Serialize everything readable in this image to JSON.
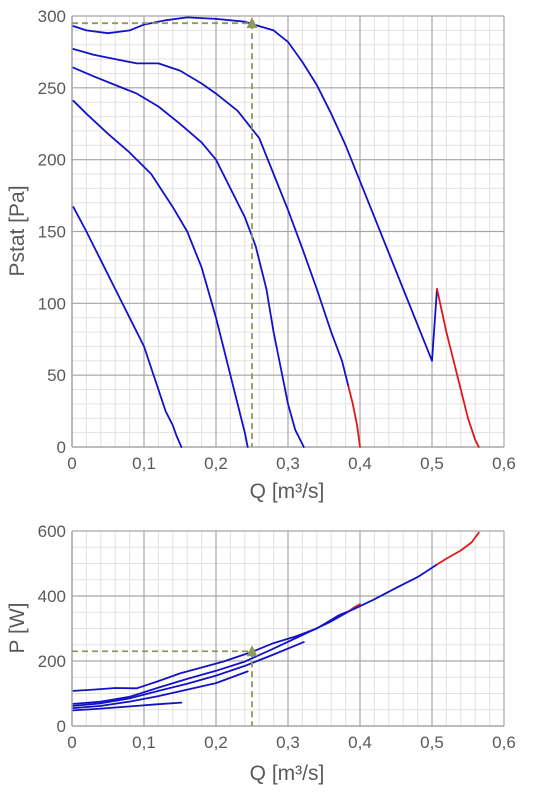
{
  "chart_data": [
    {
      "type": "line",
      "xlabel": "Q [m³/s]",
      "ylabel": "Pstat [Pa]",
      "xlim": [
        0,
        0.6
      ],
      "ylim": [
        0,
        300
      ],
      "xticks": [
        "0",
        "0,1",
        "0,2",
        "0,3",
        "0,4",
        "0,5",
        "0,6"
      ],
      "yticks": [
        "0",
        "50",
        "100",
        "150",
        "200",
        "250",
        "300"
      ],
      "grid": true,
      "colors": {
        "curve": "#1212c8",
        "limit": "#e01818",
        "operating": "#8c9a5a",
        "major_grid": "#a6a6a6",
        "minor_grid": "#e2e2e2"
      },
      "series": [
        {
          "segments": [
            {
              "color": "curve",
              "points": [
                [
                  0.002,
                  167
                ],
                [
                  0.02,
                  150
                ],
                [
                  0.04,
                  130
                ],
                [
                  0.06,
                  110
                ],
                [
                  0.08,
                  90
                ],
                [
                  0.1,
                  70
                ],
                [
                  0.11,
                  55
                ],
                [
                  0.12,
                  40
                ],
                [
                  0.13,
                  25
                ],
                [
                  0.14,
                  15
                ],
                [
                  0.145,
                  8
                ],
                [
                  0.152,
                  0
                ]
              ]
            }
          ]
        },
        {
          "segments": [
            {
              "color": "curve",
              "points": [
                [
                  0.002,
                  241
                ],
                [
                  0.02,
                  232
                ],
                [
                  0.05,
                  218
                ],
                [
                  0.08,
                  205
                ],
                [
                  0.11,
                  190
                ],
                [
                  0.14,
                  167
                ],
                [
                  0.16,
                  150
                ],
                [
                  0.18,
                  125
                ],
                [
                  0.2,
                  90
                ],
                [
                  0.21,
                  70
                ],
                [
                  0.22,
                  50
                ],
                [
                  0.23,
                  30
                ],
                [
                  0.24,
                  10
                ],
                [
                  0.244,
                  0
                ]
              ]
            }
          ]
        },
        {
          "segments": [
            {
              "color": "curve",
              "points": [
                [
                  0.002,
                  264
                ],
                [
                  0.03,
                  258
                ],
                [
                  0.06,
                  252
                ],
                [
                  0.09,
                  246
                ],
                [
                  0.12,
                  237
                ],
                [
                  0.15,
                  225
                ],
                [
                  0.18,
                  212
                ],
                [
                  0.2,
                  200
                ],
                [
                  0.22,
                  180
                ],
                [
                  0.24,
                  160
                ],
                [
                  0.255,
                  140
                ],
                [
                  0.27,
                  110
                ],
                [
                  0.28,
                  80
                ],
                [
                  0.29,
                  55
                ],
                [
                  0.3,
                  30
                ],
                [
                  0.31,
                  12
                ],
                [
                  0.322,
                  0
                ]
              ]
            }
          ]
        },
        {
          "segments": [
            {
              "color": "curve",
              "points": [
                [
                  0.002,
                  277
                ],
                [
                  0.03,
                  273
                ],
                [
                  0.06,
                  270
                ],
                [
                  0.09,
                  267
                ],
                [
                  0.12,
                  267
                ],
                [
                  0.15,
                  262
                ],
                [
                  0.18,
                  253
                ],
                [
                  0.2,
                  246
                ],
                [
                  0.23,
                  234
                ],
                [
                  0.26,
                  215
                ],
                [
                  0.28,
                  190
                ],
                [
                  0.3,
                  165
                ],
                [
                  0.32,
                  138
                ],
                [
                  0.34,
                  110
                ],
                [
                  0.36,
                  80
                ],
                [
                  0.375,
                  60
                ],
                [
                  0.384,
                  42
                ]
              ]
            },
            {
              "color": "limit",
              "points": [
                [
                  0.384,
                  42
                ],
                [
                  0.39,
                  30
                ],
                [
                  0.396,
                  15
                ],
                [
                  0.4,
                  0
                ]
              ]
            }
          ]
        },
        {
          "segments": [
            {
              "color": "curve",
              "points": [
                [
                  0.002,
                  293
                ],
                [
                  0.02,
                  290
                ],
                [
                  0.05,
                  288
                ],
                [
                  0.08,
                  290
                ],
                [
                  0.1,
                  294
                ],
                [
                  0.13,
                  297
                ],
                [
                  0.16,
                  299
                ],
                [
                  0.2,
                  298
                ],
                [
                  0.24,
                  296
                ],
                [
                  0.26,
                  293
                ],
                [
                  0.28,
                  290
                ],
                [
                  0.3,
                  282
                ],
                [
                  0.32,
                  268
                ],
                [
                  0.34,
                  252
                ],
                [
                  0.36,
                  232
                ],
                [
                  0.38,
                  210
                ],
                [
                  0.4,
                  185
                ],
                [
                  0.42,
                  160
                ],
                [
                  0.44,
                  135
                ],
                [
                  0.46,
                  110
                ],
                [
                  0.48,
                  85
                ],
                [
                  0.5,
                  60
                ],
                [
                  0.507,
                  110
                ]
              ]
            },
            {
              "color": "limit",
              "points": [
                [
                  0.507,
                  110
                ],
                [
                  0.52,
                  80
                ],
                [
                  0.53,
                  60
                ],
                [
                  0.54,
                  40
                ],
                [
                  0.55,
                  20
                ],
                [
                  0.56,
                  5
                ],
                [
                  0.565,
                  0
                ]
              ]
            }
          ]
        }
      ],
      "operating_point": {
        "x": 0.25,
        "y": 295
      }
    },
    {
      "type": "line",
      "xlabel": "Q [m³/s]",
      "ylabel": "P [W]",
      "xlim": [
        0,
        0.6
      ],
      "ylim": [
        0,
        600
      ],
      "xticks": [
        "0",
        "0,1",
        "0,2",
        "0,3",
        "0,4",
        "0,5",
        "0,6"
      ],
      "yticks": [
        "0",
        "200",
        "400",
        "600"
      ],
      "grid": true,
      "colors": {
        "curve": "#1212c8",
        "limit": "#e01818",
        "operating": "#8c9a5a",
        "major_grid": "#a6a6a6",
        "minor_grid": "#e2e2e2"
      },
      "series": [
        {
          "segments": [
            {
              "color": "curve",
              "points": [
                [
                  0.002,
                  48
                ],
                [
                  0.03,
                  52
                ],
                [
                  0.06,
                  57
                ],
                [
                  0.09,
                  62
                ],
                [
                  0.12,
                  67
                ],
                [
                  0.152,
                  72
                ]
              ]
            }
          ]
        },
        {
          "segments": [
            {
              "color": "curve",
              "points": [
                [
                  0.002,
                  55
                ],
                [
                  0.04,
                  62
                ],
                [
                  0.08,
                  75
                ],
                [
                  0.12,
                  92
                ],
                [
                  0.16,
                  112
                ],
                [
                  0.2,
                  132
                ],
                [
                  0.244,
                  168
                ]
              ]
            }
          ]
        },
        {
          "segments": [
            {
              "color": "curve",
              "points": [
                [
                  0.002,
                  62
                ],
                [
                  0.04,
                  70
                ],
                [
                  0.08,
                  85
                ],
                [
                  0.12,
                  108
                ],
                [
                  0.16,
                  130
                ],
                [
                  0.2,
                  155
                ],
                [
                  0.24,
                  185
                ],
                [
                  0.28,
                  220
                ],
                [
                  0.322,
                  258
                ]
              ]
            }
          ]
        },
        {
          "segments": [
            {
              "color": "curve",
              "points": [
                [
                  0.002,
                  68
                ],
                [
                  0.04,
                  75
                ],
                [
                  0.08,
                  90
                ],
                [
                  0.12,
                  118
                ],
                [
                  0.16,
                  145
                ],
                [
                  0.2,
                  170
                ],
                [
                  0.24,
                  198
                ],
                [
                  0.28,
                  238
                ],
                [
                  0.32,
                  280
                ],
                [
                  0.36,
                  322
                ],
                [
                  0.384,
                  352
                ]
              ]
            },
            {
              "color": "limit",
              "points": [
                [
                  0.384,
                  352
                ],
                [
                  0.392,
                  365
                ],
                [
                  0.4,
                  375
                ]
              ]
            }
          ]
        },
        {
          "segments": [
            {
              "color": "curve",
              "points": [
                [
                  0.002,
                  108
                ],
                [
                  0.03,
                  112
                ],
                [
                  0.06,
                  117
                ],
                [
                  0.09,
                  116
                ],
                [
                  0.12,
                  138
                ],
                [
                  0.15,
                  162
                ],
                [
                  0.18,
                  180
                ],
                [
                  0.21,
                  198
                ],
                [
                  0.25,
                  228
                ],
                [
                  0.28,
                  255
                ],
                [
                  0.31,
                  275
                ],
                [
                  0.34,
                  300
                ],
                [
                  0.37,
                  340
                ],
                [
                  0.39,
                  358
                ],
                [
                  0.42,
                  390
                ],
                [
                  0.45,
                  425
                ],
                [
                  0.48,
                  458
                ],
                [
                  0.507,
                  497
                ]
              ]
            },
            {
              "color": "limit",
              "points": [
                [
                  0.507,
                  497
                ],
                [
                  0.52,
                  515
                ],
                [
                  0.54,
                  540
                ],
                [
                  0.555,
                  565
                ],
                [
                  0.565,
                  595
                ]
              ]
            }
          ]
        }
      ],
      "operating_point": {
        "x": 0.25,
        "y": 230
      }
    }
  ]
}
